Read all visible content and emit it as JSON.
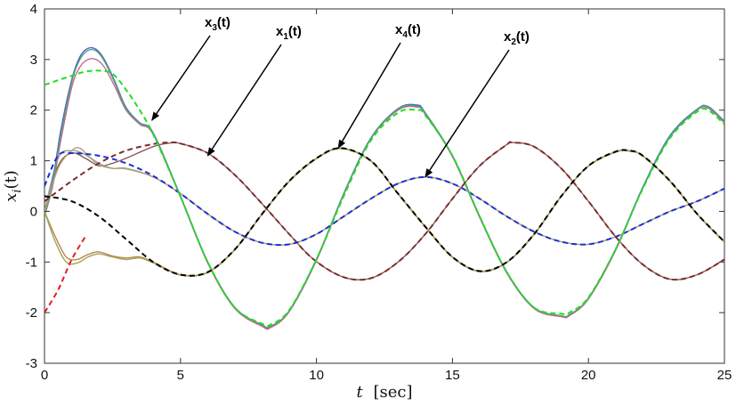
{
  "chart_data": {
    "type": "line",
    "title": "",
    "xlabel": {
      "var": "t",
      "unit": "[sec]"
    },
    "ylabel": {
      "hat_var": "x",
      "subscript": "i",
      "arg": "(t)"
    },
    "xlim": [
      0,
      25
    ],
    "ylim": [
      -3,
      4
    ],
    "xticks": [
      0,
      5,
      10,
      15,
      20,
      25
    ],
    "yticks": [
      -3,
      -2,
      -1,
      0,
      1,
      2,
      3,
      4
    ],
    "grid": false,
    "legend": "none",
    "annotations": [
      {
        "base": "x",
        "sub": "3",
        "suffix": "(t)",
        "points_to": [
          3.95,
          1.8
        ]
      },
      {
        "base": "x",
        "sub": "1",
        "suffix": "(t)",
        "points_to": [
          6.0,
          1.1
        ]
      },
      {
        "base": "x",
        "sub": "4",
        "suffix": "(t)",
        "points_to": [
          10.8,
          1.25
        ]
      },
      {
        "base": "x",
        "sub": "2",
        "suffix": "(t)",
        "points_to": [
          14.0,
          0.68
        ]
      }
    ],
    "series": [
      {
        "id": "x1_ref",
        "style": "dashed",
        "color": "#7b2d2d",
        "x": [
          0,
          1,
          2,
          3,
          4,
          4.6,
          5,
          6,
          7,
          8,
          9,
          9.9,
          11,
          12,
          13,
          14,
          15,
          16,
          17,
          17.2,
          18,
          19,
          20,
          21,
          22,
          23,
          24,
          25
        ],
        "y": [
          0.2,
          0.6,
          0.95,
          1.2,
          1.33,
          1.36,
          1.34,
          1.15,
          0.72,
          0.15,
          -0.45,
          -0.95,
          -1.3,
          -1.32,
          -1.0,
          -0.45,
          0.25,
          0.9,
          1.32,
          1.36,
          1.28,
          0.85,
          0.2,
          -0.5,
          -1.05,
          -1.34,
          -1.25,
          -0.95
        ]
      },
      {
        "id": "x2_ref",
        "style": "dashed",
        "color": "#1a2fd6",
        "x": [
          0,
          0.5,
          1,
          2,
          3,
          4,
          5,
          6,
          7,
          8,
          9,
          10,
          11,
          12,
          13,
          14,
          15,
          16,
          17,
          18,
          19,
          20,
          21,
          22,
          23,
          24,
          25
        ],
        "y": [
          0.5,
          1.1,
          1.15,
          1.1,
          0.95,
          0.7,
          0.35,
          -0.05,
          -0.4,
          -0.62,
          -0.65,
          -0.45,
          -0.1,
          0.25,
          0.55,
          0.68,
          0.55,
          0.25,
          -0.1,
          -0.4,
          -0.6,
          -0.65,
          -0.5,
          -0.25,
          0.0,
          0.2,
          0.45
        ]
      },
      {
        "id": "x3_ref",
        "style": "dashed",
        "color": "#22dd22",
        "x": [
          0,
          1,
          1.5,
          2,
          2.5,
          3,
          3.5,
          4,
          5,
          6,
          7,
          8,
          8.3,
          9,
          10,
          11,
          12,
          13,
          13.7,
          14,
          15,
          16,
          17,
          18,
          19,
          19.3,
          20,
          21,
          22,
          23,
          24,
          24.4,
          25
        ],
        "y": [
          2.5,
          2.68,
          2.76,
          2.78,
          2.72,
          2.4,
          2.0,
          1.52,
          0.3,
          -1.0,
          -1.9,
          -2.22,
          -2.24,
          -1.95,
          -0.95,
          0.3,
          1.4,
          1.95,
          2.0,
          1.9,
          1.1,
          -0.1,
          -1.2,
          -1.9,
          -2.02,
          -2.0,
          -1.7,
          -0.75,
          0.45,
          1.45,
          1.97,
          2.0,
          1.72
        ]
      },
      {
        "id": "x4_ref",
        "style": "dashed",
        "color": "#000000",
        "x": [
          0,
          1,
          2,
          3,
          4,
          5,
          6,
          7,
          8,
          9,
          10,
          10.9,
          12,
          13,
          14,
          15,
          16,
          17,
          18,
          19,
          20,
          21,
          21.5,
          22,
          23,
          24,
          25
        ],
        "y": [
          0.3,
          0.2,
          -0.1,
          -0.55,
          -1.0,
          -1.25,
          -1.2,
          -0.75,
          -0.05,
          0.6,
          1.05,
          1.25,
          1.0,
          0.35,
          -0.3,
          -0.9,
          -1.18,
          -1.0,
          -0.45,
          0.3,
          0.9,
          1.18,
          1.2,
          1.1,
          0.6,
          -0.05,
          -0.6
        ]
      },
      {
        "id": "x1_est",
        "style": "solid",
        "color": "#8d5a5a",
        "x": [
          0,
          0.5,
          1,
          1.5,
          2,
          2.5,
          3,
          4,
          4.6,
          5,
          6,
          7,
          8,
          9,
          9.9,
          11,
          12,
          13,
          14,
          15,
          16,
          17,
          17.2,
          18,
          19,
          20,
          21,
          22,
          23,
          24,
          25
        ],
        "y": [
          0.0,
          0.9,
          1.15,
          1.05,
          0.9,
          0.95,
          1.05,
          1.28,
          1.35,
          1.34,
          1.15,
          0.72,
          0.15,
          -0.45,
          -0.95,
          -1.3,
          -1.32,
          -1.0,
          -0.45,
          0.25,
          0.9,
          1.32,
          1.36,
          1.28,
          0.85,
          0.2,
          -0.5,
          -1.05,
          -1.34,
          -1.25,
          -0.95
        ]
      },
      {
        "id": "x2_est",
        "style": "solid",
        "color": "#8fa0a8",
        "x": [
          0,
          0.5,
          1,
          1.5,
          2,
          2.5,
          3,
          4,
          5,
          6,
          7,
          8,
          9,
          10,
          11,
          12,
          13,
          14,
          15,
          16,
          17,
          18,
          19,
          20,
          21,
          22,
          23,
          24,
          25
        ],
        "y": [
          0.0,
          1.05,
          1.2,
          1.12,
          0.95,
          0.85,
          0.85,
          0.68,
          0.35,
          -0.05,
          -0.4,
          -0.62,
          -0.65,
          -0.45,
          -0.1,
          0.25,
          0.55,
          0.68,
          0.55,
          0.25,
          -0.1,
          -0.4,
          -0.6,
          -0.65,
          -0.5,
          -0.25,
          0.0,
          0.2,
          0.45
        ]
      },
      {
        "id": "x3_est_a",
        "style": "solid",
        "color": "#4b63c8",
        "x": [
          0,
          0.3,
          0.6,
          1,
          1.3,
          1.6,
          1.9,
          2.2,
          2.6,
          3,
          3.5,
          4,
          5,
          6,
          7,
          8,
          8.3,
          9,
          10,
          11,
          12,
          13,
          13.7,
          14,
          15,
          16,
          17,
          18,
          19,
          19.3,
          20,
          21,
          22,
          23,
          24,
          24.4,
          25
        ],
        "y": [
          -0.1,
          0.6,
          1.6,
          2.6,
          3.05,
          3.22,
          3.2,
          3.0,
          2.55,
          2.05,
          1.75,
          1.55,
          0.3,
          -1.0,
          -1.9,
          -2.25,
          -2.28,
          -1.97,
          -0.95,
          0.35,
          1.45,
          2.03,
          2.1,
          1.95,
          1.1,
          -0.1,
          -1.2,
          -1.9,
          -2.07,
          -2.05,
          -1.72,
          -0.75,
          0.48,
          1.5,
          2.02,
          2.07,
          1.78
        ]
      },
      {
        "id": "x3_est_b",
        "style": "solid",
        "color": "#c76a8d",
        "x": [
          0,
          0.3,
          0.6,
          1,
          1.3,
          1.6,
          1.9,
          2.2,
          2.6,
          3,
          3.5,
          4,
          5,
          6,
          7,
          8,
          8.3,
          9,
          10,
          11,
          12,
          13,
          13.7,
          14,
          15,
          16,
          17,
          18,
          19,
          19.3,
          20,
          21,
          22,
          23,
          24,
          24.4,
          25
        ],
        "y": [
          -0.1,
          0.5,
          1.4,
          2.45,
          2.85,
          3.0,
          3.0,
          2.85,
          2.45,
          2.0,
          1.72,
          1.52,
          0.28,
          -1.02,
          -1.92,
          -2.27,
          -2.3,
          -1.98,
          -0.97,
          0.33,
          1.43,
          2.0,
          2.06,
          1.92,
          1.08,
          -0.12,
          -1.22,
          -1.92,
          -2.08,
          -2.06,
          -1.73,
          -0.77,
          0.46,
          1.47,
          2.0,
          2.04,
          1.75
        ]
      },
      {
        "id": "x3_est_c",
        "style": "solid",
        "color": "#56a07c",
        "x": [
          0,
          0.3,
          0.6,
          1,
          1.3,
          1.6,
          1.9,
          2.2,
          2.6,
          3,
          3.5,
          4,
          5,
          6,
          7,
          8,
          8.3,
          9,
          10,
          11,
          12,
          13,
          13.7,
          14,
          15,
          16,
          17,
          18,
          19,
          19.3,
          20,
          21,
          22,
          23,
          24,
          24.4,
          25
        ],
        "y": [
          -0.1,
          0.55,
          1.5,
          2.55,
          3.0,
          3.18,
          3.17,
          2.97,
          2.52,
          2.03,
          1.74,
          1.54,
          0.3,
          -1.0,
          -1.9,
          -2.24,
          -2.27,
          -1.96,
          -0.94,
          0.34,
          1.44,
          2.02,
          2.08,
          1.94,
          1.1,
          -0.1,
          -1.2,
          -1.9,
          -2.06,
          -2.04,
          -1.71,
          -0.74,
          0.47,
          1.48,
          2.01,
          2.06,
          1.77
        ]
      },
      {
        "id": "x4_est_a",
        "style": "solid",
        "color": "#b58a4e",
        "x": [
          0,
          0.4,
          0.8,
          1.2,
          1.6,
          2,
          2.5,
          3,
          3.5,
          4,
          5,
          6,
          7,
          8,
          9,
          10,
          10.9,
          12,
          13,
          14,
          15,
          16,
          17,
          18,
          19,
          20,
          21,
          21.5,
          22,
          23,
          24,
          25
        ],
        "y": [
          0.0,
          -0.5,
          -0.9,
          -0.95,
          -0.85,
          -0.8,
          -0.88,
          -0.92,
          -0.9,
          -1.0,
          -1.25,
          -1.2,
          -0.75,
          -0.05,
          0.6,
          1.05,
          1.25,
          1.0,
          0.35,
          -0.3,
          -0.9,
          -1.18,
          -1.0,
          -0.45,
          0.3,
          0.9,
          1.18,
          1.2,
          1.1,
          0.6,
          -0.05,
          -0.6
        ]
      },
      {
        "id": "x4_est_b",
        "style": "solid",
        "color": "#a3a35a",
        "x": [
          0,
          0.4,
          0.8,
          1.2,
          1.6,
          2,
          2.5,
          3,
          3.5,
          4,
          5,
          6,
          7,
          8,
          9,
          10,
          10.9,
          12,
          13,
          14,
          15,
          16,
          17,
          18,
          19,
          20,
          21,
          21.5,
          22,
          23,
          24,
          25
        ],
        "y": [
          0.0,
          -0.6,
          -1.0,
          -1.02,
          -0.9,
          -0.84,
          -0.9,
          -0.95,
          -0.92,
          -1.02,
          -1.26,
          -1.21,
          -0.76,
          -0.06,
          0.59,
          1.04,
          1.24,
          0.99,
          0.34,
          -0.31,
          -0.91,
          -1.19,
          -1.01,
          -0.46,
          0.29,
          0.89,
          1.17,
          1.19,
          1.09,
          0.59,
          -0.06,
          -0.61
        ]
      },
      {
        "id": "x2_est_b",
        "style": "solid",
        "color": "#b0a070",
        "x": [
          0,
          0.5,
          1,
          1.3,
          1.6,
          2,
          2.5,
          3,
          4,
          5,
          6,
          7,
          8,
          9,
          10,
          11,
          12,
          13,
          14,
          15,
          16,
          17,
          18,
          19,
          20,
          21,
          22,
          23,
          24,
          25
        ],
        "y": [
          0.0,
          0.85,
          1.2,
          1.25,
          1.1,
          0.92,
          0.85,
          0.84,
          0.68,
          0.35,
          -0.05,
          -0.4,
          -0.62,
          -0.65,
          -0.45,
          -0.1,
          0.25,
          0.55,
          0.68,
          0.55,
          0.25,
          -0.1,
          -0.4,
          -0.6,
          -0.65,
          -0.5,
          -0.25,
          0.0,
          0.2,
          0.45
        ]
      },
      {
        "id": "x1_dash_red",
        "style": "dashed",
        "color": "#e02020",
        "x": [
          0,
          0.5,
          1,
          1.5
        ],
        "y": [
          -2.0,
          -1.55,
          -0.95,
          -0.5
        ]
      }
    ]
  }
}
